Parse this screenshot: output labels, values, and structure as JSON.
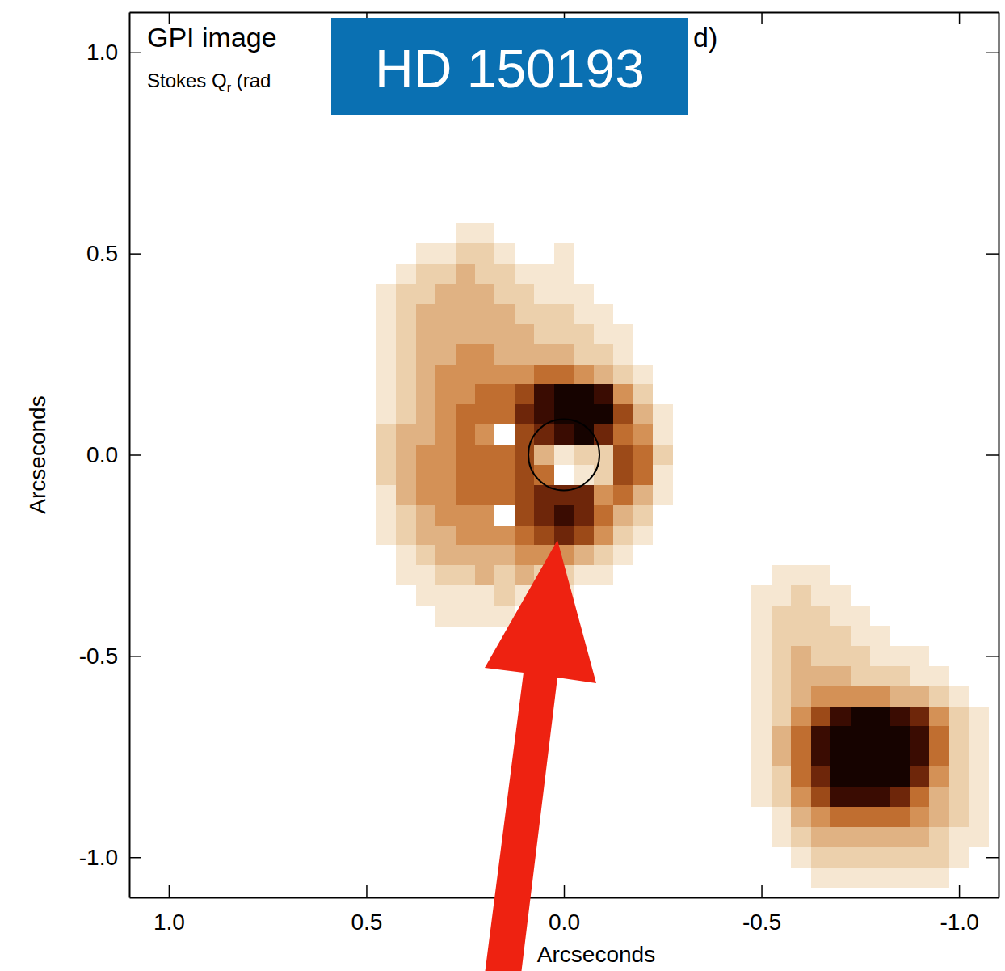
{
  "chart_data": {
    "type": "heatmap",
    "title": "GPI image",
    "title_end": "d)",
    "subtitle": [
      "Stokes Q",
      "r",
      " (rad"
    ],
    "annotations": [
      {
        "text": "HD 150193"
      }
    ],
    "xlabel": "Arcseconds",
    "ylabel": "Arcseconds",
    "xlim": [
      1.1,
      -1.1
    ],
    "ylim": [
      -1.1,
      1.1
    ],
    "xticks": [
      {
        "value": 1,
        "label": "1.0"
      },
      0.5,
      {
        "value": 0,
        "label": "0.0"
      },
      -0.5,
      {
        "value": -1,
        "label": "-1.0"
      }
    ],
    "yticks": [
      {
        "value": 1,
        "label": "1.0"
      },
      0.5,
      {
        "value": 0,
        "label": "0.0"
      },
      -0.5,
      {
        "value": -1,
        "label": "-1.0"
      }
    ],
    "zlim": [
      0,
      9
    ],
    "circle": {
      "x": 0,
      "y": 0,
      "r": 0.09
    },
    "series": [
      {
        "x": [
          0.45,
          0.4,
          0.35,
          0.3,
          0.25,
          0.2,
          0.15,
          0.1,
          0.05,
          0,
          -0.05,
          -0.1,
          -0.15,
          -0.2,
          -0.25
        ],
        "y": [
          0.55,
          0.5,
          0.45,
          0.4,
          0.35,
          0.3,
          0.25,
          0.2,
          0.15,
          0.1,
          0.05,
          0,
          -0.05,
          -0.1,
          -0.15,
          -0.2,
          -0.25,
          -0.3,
          -0.35,
          -0.4
        ],
        "values": [
          [
            0,
            0,
            0,
            0,
            1,
            1,
            0,
            0,
            0,
            0,
            0,
            0,
            0,
            0,
            0
          ],
          [
            0,
            0,
            1,
            1,
            2,
            2,
            1,
            0,
            0,
            1,
            0,
            0,
            0,
            0,
            0
          ],
          [
            0,
            1,
            2,
            2,
            3,
            2,
            2,
            1,
            1,
            1,
            0,
            0,
            0,
            0,
            0
          ],
          [
            1,
            2,
            2,
            3,
            3,
            3,
            2,
            2,
            1,
            1,
            1,
            0,
            0,
            0,
            0
          ],
          [
            1,
            2,
            3,
            3,
            3,
            3,
            3,
            2,
            2,
            2,
            1,
            1,
            0,
            0,
            0
          ],
          [
            1,
            2,
            3,
            3,
            3,
            3,
            3,
            3,
            2,
            2,
            2,
            1,
            1,
            0,
            0
          ],
          [
            1,
            2,
            3,
            3,
            4,
            4,
            3,
            3,
            3,
            3,
            2,
            2,
            1,
            0,
            0
          ],
          [
            1,
            2,
            3,
            4,
            4,
            4,
            4,
            4,
            5,
            5,
            4,
            3,
            2,
            1,
            0
          ],
          [
            1,
            2,
            3,
            4,
            4,
            5,
            5,
            6,
            8,
            9,
            9,
            8,
            4,
            2,
            0
          ],
          [
            1,
            2,
            3,
            4,
            5,
            5,
            5,
            7,
            8,
            9,
            9,
            9,
            6,
            3,
            1
          ],
          [
            2,
            3,
            3,
            4,
            5,
            4,
            0,
            6,
            7,
            8,
            9,
            7,
            5,
            4,
            1
          ],
          [
            2,
            3,
            4,
            4,
            5,
            5,
            5,
            6,
            3,
            1,
            2,
            2,
            6,
            5,
            2
          ],
          [
            2,
            3,
            4,
            4,
            5,
            5,
            5,
            6,
            5,
            0,
            1,
            2,
            6,
            5,
            1
          ],
          [
            1,
            3,
            4,
            4,
            5,
            5,
            5,
            6,
            7,
            7,
            7,
            4,
            5,
            3,
            1
          ],
          [
            1,
            2,
            3,
            4,
            4,
            4,
            0,
            6,
            7,
            8,
            7,
            5,
            3,
            2,
            0
          ],
          [
            1,
            2,
            3,
            3,
            4,
            4,
            4,
            5,
            6,
            7,
            6,
            4,
            2,
            1,
            0
          ],
          [
            0,
            1,
            2,
            3,
            3,
            3,
            3,
            4,
            4,
            4,
            3,
            2,
            1,
            0,
            0
          ],
          [
            0,
            1,
            1,
            2,
            2,
            3,
            2,
            3,
            2,
            2,
            1,
            1,
            0,
            0,
            0
          ],
          [
            0,
            0,
            1,
            1,
            1,
            1,
            2,
            1,
            1,
            1,
            0,
            0,
            0,
            0,
            0
          ],
          [
            0,
            0,
            0,
            1,
            1,
            1,
            1,
            0,
            0,
            0,
            0,
            0,
            0,
            0,
            0
          ]
        ]
      },
      {
        "x": [
          -0.5,
          -0.55,
          -0.6,
          -0.65,
          -0.7,
          -0.75,
          -0.8,
          -0.85,
          -0.9,
          -0.95,
          -1,
          -1.05
        ],
        "y": [
          -0.3,
          -0.35,
          -0.4,
          -0.45,
          -0.5,
          -0.55,
          -0.6,
          -0.65,
          -0.7,
          -0.75,
          -0.8,
          -0.85,
          -0.9,
          -0.95,
          -1,
          -1.05
        ],
        "values": [
          [
            0,
            1,
            1,
            1,
            0,
            0,
            0,
            0,
            0,
            0,
            0,
            0
          ],
          [
            1,
            1,
            2,
            1,
            1,
            0,
            0,
            0,
            0,
            0,
            0,
            0
          ],
          [
            1,
            2,
            2,
            2,
            1,
            1,
            0,
            0,
            0,
            0,
            0,
            0
          ],
          [
            1,
            2,
            2,
            2,
            2,
            1,
            1,
            0,
            0,
            0,
            0,
            0
          ],
          [
            1,
            2,
            3,
            2,
            2,
            2,
            1,
            1,
            1,
            0,
            0,
            0
          ],
          [
            1,
            2,
            3,
            3,
            3,
            2,
            2,
            2,
            1,
            1,
            0,
            0
          ],
          [
            1,
            2,
            3,
            4,
            4,
            4,
            4,
            3,
            3,
            2,
            1,
            0
          ],
          [
            1,
            2,
            4,
            6,
            8,
            9,
            9,
            8,
            7,
            4,
            2,
            1
          ],
          [
            1,
            3,
            5,
            8,
            9,
            9,
            9,
            9,
            8,
            5,
            2,
            1
          ],
          [
            1,
            3,
            5,
            8,
            9,
            9,
            9,
            9,
            8,
            5,
            2,
            1
          ],
          [
            1,
            2,
            5,
            7,
            9,
            9,
            9,
            9,
            7,
            4,
            2,
            1
          ],
          [
            1,
            2,
            4,
            6,
            8,
            8,
            8,
            7,
            5,
            3,
            2,
            1
          ],
          [
            0,
            1,
            3,
            4,
            5,
            5,
            5,
            5,
            4,
            3,
            2,
            1
          ],
          [
            0,
            1,
            2,
            3,
            3,
            3,
            3,
            3,
            3,
            2,
            1,
            1
          ],
          [
            0,
            0,
            1,
            2,
            2,
            2,
            2,
            2,
            2,
            2,
            1,
            0
          ],
          [
            0,
            0,
            0,
            1,
            1,
            1,
            1,
            1,
            1,
            1,
            0,
            0
          ]
        ]
      }
    ]
  }
}
